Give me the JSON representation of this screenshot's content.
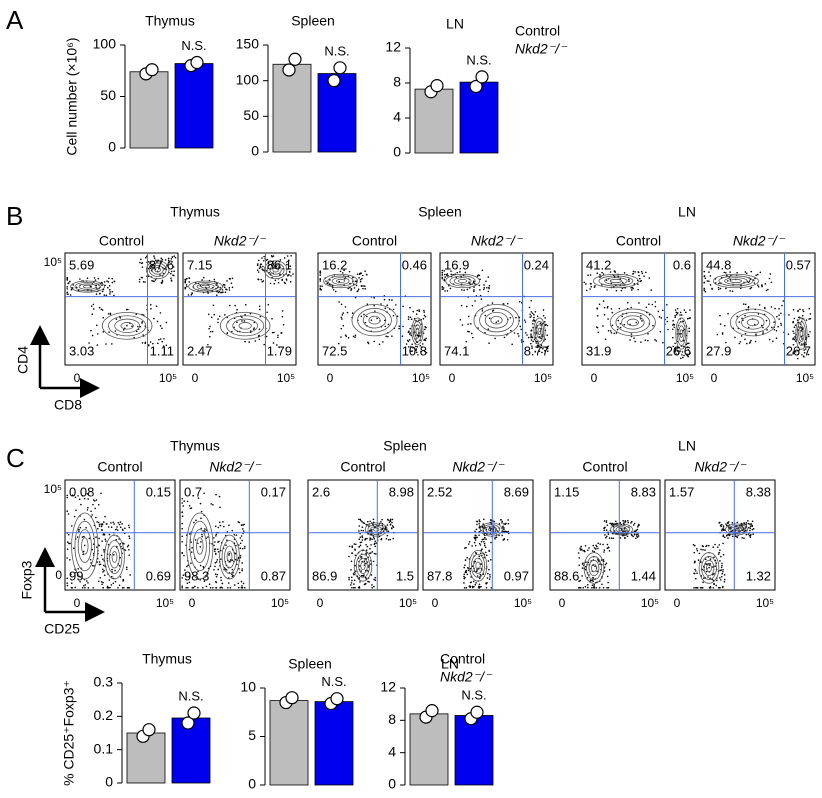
{
  "panel_labels": [
    "A",
    "B",
    "C"
  ],
  "chart_data": [
    {
      "type": "bar",
      "title": "Thymus",
      "y_label": "Cell number (×10⁶)",
      "ylim": [
        0,
        100
      ],
      "yticks": [
        0,
        50,
        100
      ],
      "categories": [
        null,
        null
      ],
      "values": [
        74,
        82
      ],
      "colors": [
        "#bdbdbd",
        "#0000ee"
      ],
      "points": [
        [
          72,
          76
        ],
        [
          80,
          83
        ]
      ],
      "annotation": "N.S."
    },
    {
      "type": "bar",
      "title": "Spleen",
      "ylim": [
        0,
        150
      ],
      "yticks": [
        0,
        50,
        100,
        150
      ],
      "categories": [
        null,
        null
      ],
      "values": [
        123,
        110
      ],
      "colors": [
        "#bdbdbd",
        "#0000ee"
      ],
      "points": [
        [
          115,
          130
        ],
        [
          100,
          118
        ]
      ],
      "annotation": "N.S."
    },
    {
      "type": "bar",
      "title": "LN",
      "ylim": [
        0,
        12
      ],
      "yticks": [
        0,
        4,
        8,
        12
      ],
      "categories": [
        null,
        null
      ],
      "values": [
        7.3,
        8.1
      ],
      "colors": [
        "#bdbdbd",
        "#0000ee"
      ],
      "points": [
        [
          7,
          7.7
        ],
        [
          7.6,
          8.7
        ]
      ],
      "annotation": "N.S."
    },
    {
      "type": "bar",
      "title": "Thymus",
      "y_label": "% CD25⁺Foxp3⁺",
      "ylim": [
        0,
        0.3
      ],
      "yticks": [
        0,
        0.1,
        0.2,
        0.3
      ],
      "categories": [
        null,
        null
      ],
      "values": [
        0.15,
        0.195
      ],
      "colors": [
        "#bdbdbd",
        "#0000ee"
      ],
      "points": [
        [
          0.14,
          0.16
        ],
        [
          0.18,
          0.21
        ]
      ],
      "annotation": "N.S."
    },
    {
      "type": "bar",
      "title": "Spleen",
      "ylim": [
        0,
        10
      ],
      "yticks": [
        0,
        5,
        10
      ],
      "categories": [
        null,
        null
      ],
      "values": [
        8.7,
        8.6
      ],
      "colors": [
        "#bdbdbd",
        "#0000ee"
      ],
      "points": [
        [
          8.5,
          9
        ],
        [
          8.4,
          8.9
        ]
      ],
      "annotation": "N.S."
    },
    {
      "type": "bar",
      "title": "LN",
      "ylim": [
        0,
        12
      ],
      "yticks": [
        0,
        4,
        8,
        12
      ],
      "categories": [
        null,
        null
      ],
      "values": [
        8.8,
        8.6
      ],
      "colors": [
        "#bdbdbd",
        "#0000ee"
      ],
      "points": [
        [
          8.4,
          9.2
        ],
        [
          8.2,
          9
        ]
      ],
      "annotation": "N.S."
    }
  ],
  "legends": [
    [
      {
        "name": "Control",
        "color": "#000000"
      },
      {
        "name": "Nkd2⁻/⁻",
        "color": "#1a1aff"
      }
    ],
    [
      {
        "name": "Control",
        "color": "#000000"
      },
      {
        "name": "Nkd2⁻/⁻",
        "color": "#1a1aff"
      }
    ]
  ],
  "flow": [
    {
      "x_label": "CD8",
      "y_label": "CD4",
      "zero": "0",
      "max": "10⁵",
      "groups": [
        {
          "title": "Thymus",
          "plots": [
            {
              "title": "Control",
              "quadrants": [
                5.69,
                87.6,
                3.03,
                1.11
              ]
            },
            {
              "title": "Nkd2⁻/⁻",
              "quadrants": [
                7.15,
                86.1,
                2.47,
                1.79
              ]
            }
          ]
        },
        {
          "title": "Spleen",
          "plots": [
            {
              "title": "Control",
              "quadrants": [
                16.2,
                0.46,
                72.5,
                10.8
              ]
            },
            {
              "title": "Nkd2⁻/⁻",
              "quadrants": [
                16.9,
                0.24,
                74.1,
                8.77
              ]
            }
          ]
        },
        {
          "title": "LN",
          "plots": [
            {
              "title": "Control",
              "quadrants": [
                41.2,
                0.6,
                31.9,
                26.6
              ]
            },
            {
              "title": "Nkd2⁻/⁻",
              "quadrants": [
                44.8,
                0.57,
                27.9,
                26.7
              ]
            }
          ]
        }
      ]
    },
    {
      "x_label": "CD25",
      "y_label": "Foxp3",
      "zero": "0",
      "max": "10⁵",
      "groups": [
        {
          "title": "Thymus",
          "plots": [
            {
              "title": "Control",
              "quadrants": [
                0.08,
                0.15,
                99,
                0.69
              ]
            },
            {
              "title": "Nkd2⁻/⁻",
              "quadrants": [
                0.7,
                0.17,
                98.3,
                0.87
              ]
            }
          ]
        },
        {
          "title": "Spleen",
          "plots": [
            {
              "title": "Control",
              "quadrants": [
                2.6,
                8.98,
                86.9,
                1.5
              ]
            },
            {
              "title": "Nkd2⁻/⁻",
              "quadrants": [
                2.52,
                8.69,
                87.8,
                0.97
              ]
            }
          ]
        },
        {
          "title": "LN",
          "plots": [
            {
              "title": "Control",
              "quadrants": [
                1.15,
                8.83,
                88.6,
                1.44
              ]
            },
            {
              "title": "Nkd2⁻/⁻",
              "quadrants": [
                1.57,
                8.38,
                null,
                1.32
              ]
            }
          ]
        }
      ]
    }
  ]
}
